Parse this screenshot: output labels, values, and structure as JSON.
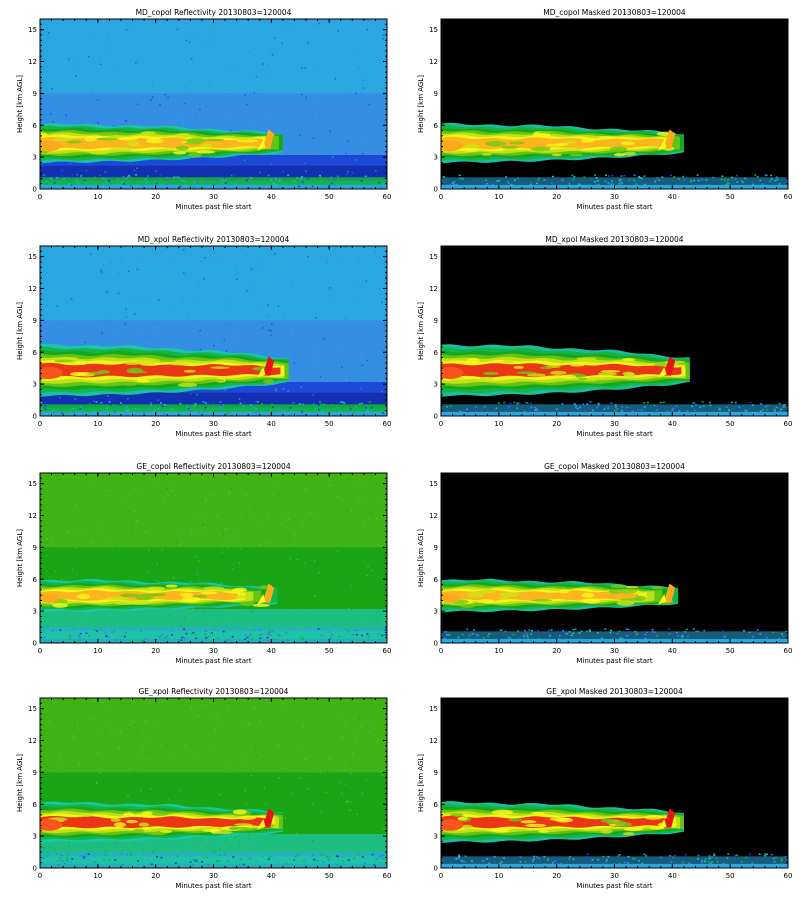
{
  "figure": {
    "background": "#ffffff"
  },
  "colormap": [
    "#06188c",
    "#1d3fd6",
    "#3a7ae8",
    "#2aa7e0",
    "#1ec6a6",
    "#12b43a",
    "#19a515",
    "#72c814",
    "#cfe514",
    "#fbf81a",
    "#fca91e",
    "#f8541e",
    "#e81414"
  ],
  "chart_data": [
    {
      "type": "heatmap",
      "title": "MD_copol Reflectivity 20130803=120004",
      "xlabel": "Minutes past file start",
      "ylabel": "Height [km AGL]",
      "xlim": [
        0,
        60
      ],
      "ylim": [
        0,
        16
      ],
      "xticks": [
        "0",
        "10",
        "20",
        "30",
        "40",
        "50",
        "60"
      ],
      "yticks": [
        "0",
        "3",
        "6",
        "9",
        "12",
        "15"
      ],
      "variant": "reflectivity",
      "background_level": 3,
      "upper_gradient": false,
      "cloud": {
        "x_start": 0,
        "x_end": 42,
        "base_km": 2.5,
        "top_km": 6.0,
        "max_level": 10,
        "scale": 0.85
      },
      "surface_level": 5
    },
    {
      "type": "heatmap",
      "title": "MD_copol Masked 20130803=120004",
      "xlabel": "Minutes past file start",
      "ylabel": "Height [km AGL]",
      "xlim": [
        0,
        60
      ],
      "ylim": [
        0,
        16
      ],
      "xticks": [
        "0",
        "10",
        "20",
        "30",
        "40",
        "50",
        "60"
      ],
      "yticks": [
        "0",
        "3",
        "6",
        "9",
        "12",
        "15"
      ],
      "variant": "masked",
      "background": "#000000",
      "cloud": {
        "x_start": 0,
        "x_end": 42,
        "base_km": 2.5,
        "top_km": 6.0,
        "max_level": 10,
        "scale": 0.85
      },
      "surface_level": 3
    },
    {
      "type": "heatmap",
      "title": "MD_xpol Reflectivity 20130803=120004",
      "xlabel": "Minutes past file start",
      "ylabel": "Height [km AGL]",
      "xlim": [
        0,
        60
      ],
      "ylim": [
        0,
        16
      ],
      "xticks": [
        "0",
        "10",
        "20",
        "30",
        "40",
        "50",
        "60"
      ],
      "yticks": [
        "0",
        "3",
        "6",
        "9",
        "12",
        "15"
      ],
      "variant": "reflectivity",
      "background_level": 3,
      "upper_gradient": false,
      "cloud": {
        "x_start": 0,
        "x_end": 43,
        "base_km": 2.0,
        "top_km": 6.5,
        "max_level": 12,
        "scale": 1.0
      },
      "surface_level": 5
    },
    {
      "type": "heatmap",
      "title": "MD_xpol Masked 20130803=120004",
      "xlabel": "Minutes past file start",
      "ylabel": "Height [km AGL]",
      "xlim": [
        0,
        60
      ],
      "ylim": [
        0,
        16
      ],
      "xticks": [
        "0",
        "10",
        "20",
        "30",
        "40",
        "50",
        "60"
      ],
      "yticks": [
        "0",
        "3",
        "6",
        "9",
        "12",
        "15"
      ],
      "variant": "masked",
      "background": "#000000",
      "cloud": {
        "x_start": 0,
        "x_end": 43,
        "base_km": 2.0,
        "top_km": 6.5,
        "max_level": 12,
        "scale": 1.0
      },
      "surface_level": 3
    },
    {
      "type": "heatmap",
      "title": "GE_copol Reflectivity 20130803=120004",
      "xlabel": "Minutes past file start",
      "ylabel": "Height [km AGL]",
      "xlim": [
        0,
        60
      ],
      "ylim": [
        0,
        16
      ],
      "xticks": [
        "0",
        "10",
        "20",
        "30",
        "40",
        "50",
        "60"
      ],
      "yticks": [
        "0",
        "3",
        "6",
        "9",
        "12",
        "15"
      ],
      "variant": "reflectivity",
      "background_level": 6,
      "upper_gradient": true,
      "cloud": {
        "x_start": 0,
        "x_end": 41,
        "base_km": 2.8,
        "top_km": 6.0,
        "max_level": 10,
        "scale": 0.6
      },
      "surface_level": 4
    },
    {
      "type": "heatmap",
      "title": "GE_copol Masked 20130803=120004",
      "xlabel": "Minutes past file start",
      "ylabel": "Height [km AGL]",
      "xlim": [
        0,
        60
      ],
      "ylim": [
        0,
        16
      ],
      "xticks": [
        "0",
        "10",
        "20",
        "30",
        "40",
        "50",
        "60"
      ],
      "yticks": [
        "0",
        "3",
        "6",
        "9",
        "12",
        "15"
      ],
      "variant": "masked",
      "background": "#000000",
      "cloud": {
        "x_start": 0,
        "x_end": 41,
        "base_km": 2.8,
        "top_km": 6.0,
        "max_level": 10,
        "scale": 0.6
      },
      "surface_level": 3
    },
    {
      "type": "heatmap",
      "title": "GE_xpol Reflectivity 20130803=120004",
      "xlabel": "Minutes past file start",
      "ylabel": "Height [km AGL]",
      "xlim": [
        0,
        60
      ],
      "ylim": [
        0,
        16
      ],
      "xticks": [
        "0",
        "10",
        "20",
        "30",
        "40",
        "50",
        "60"
      ],
      "yticks": [
        "0",
        "3",
        "6",
        "9",
        "12",
        "15"
      ],
      "variant": "reflectivity",
      "background_level": 6,
      "upper_gradient": true,
      "cloud": {
        "x_start": 0,
        "x_end": 42,
        "base_km": 2.5,
        "top_km": 6.0,
        "max_level": 12,
        "scale": 0.95
      },
      "surface_level": 4
    },
    {
      "type": "heatmap",
      "title": "GE_xpol Masked 20130803=120004",
      "xlabel": "Minutes past file start",
      "ylabel": "Height [km AGL]",
      "xlim": [
        0,
        60
      ],
      "ylim": [
        0,
        16
      ],
      "xticks": [
        "0",
        "10",
        "20",
        "30",
        "40",
        "50",
        "60"
      ],
      "yticks": [
        "0",
        "3",
        "6",
        "9",
        "12",
        "15"
      ],
      "variant": "masked",
      "background": "#000000",
      "cloud": {
        "x_start": 0,
        "x_end": 42,
        "base_km": 2.5,
        "top_km": 6.0,
        "max_level": 12,
        "scale": 0.95
      },
      "surface_level": 3
    }
  ]
}
